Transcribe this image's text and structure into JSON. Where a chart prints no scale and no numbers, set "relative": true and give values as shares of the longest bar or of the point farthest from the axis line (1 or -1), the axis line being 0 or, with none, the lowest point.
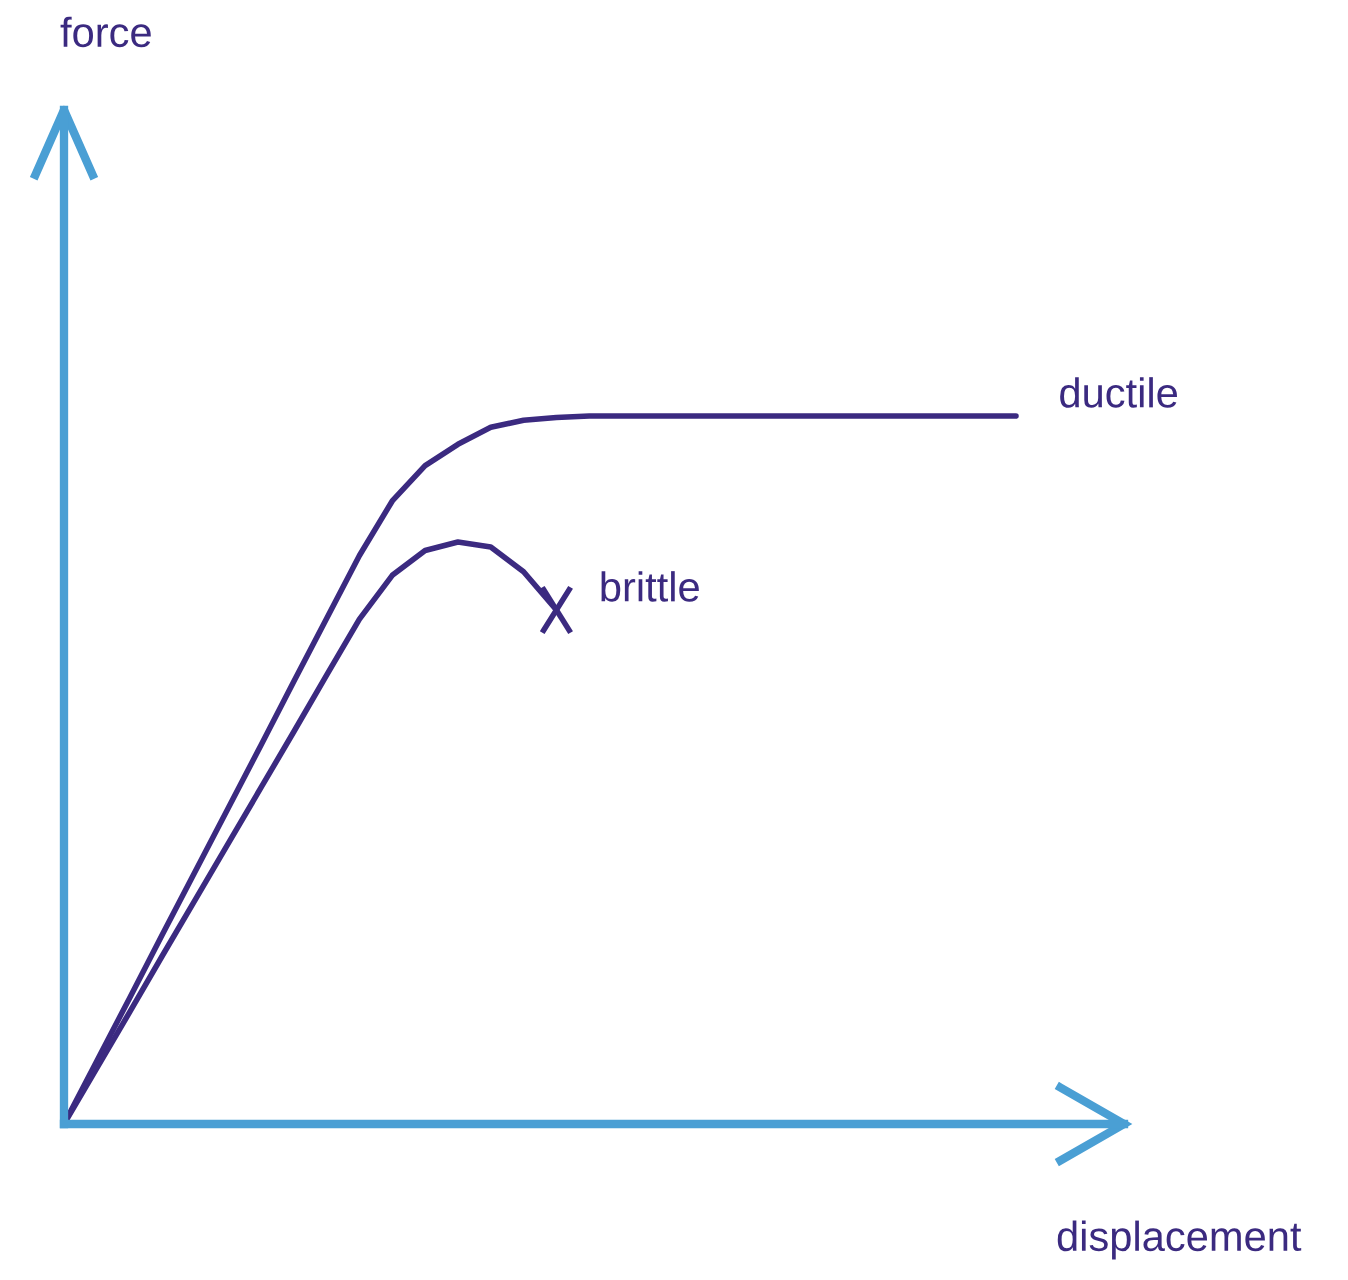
{
  "chart_data": {
    "type": "line",
    "relative": true,
    "xlabel": "displacement",
    "annotations": [
      "force"
    ],
    "line_style": "solid",
    "categories": [
      null,
      null,
      null,
      null,
      null,
      null,
      null,
      null,
      null,
      null,
      null,
      null,
      null,
      null,
      null,
      null,
      null,
      null,
      null,
      null,
      null,
      null,
      null,
      null,
      null,
      null,
      null,
      null,
      null,
      null
    ],
    "series": [
      {
        "name": "ductile",
        "color": "#3b2a80",
        "values": [
          0,
          0.089,
          0.178,
          0.268,
          0.357,
          0.446,
          0.535,
          0.625,
          0.714,
          0.803,
          0.88,
          0.93,
          0.96,
          0.984,
          0.994,
          0.998,
          1,
          1,
          1,
          1,
          1,
          1,
          1,
          1,
          1,
          1,
          1,
          1,
          1,
          1
        ]
      },
      {
        "name": "brittle",
        "color": "#3b2a80",
        "values": [
          0,
          0.079,
          0.158,
          0.238,
          0.317,
          0.396,
          0.475,
          0.554,
          0.634,
          0.713,
          0.775,
          0.81,
          0.822,
          0.815,
          0.78,
          0.726,
          null,
          null,
          null,
          null,
          null,
          null,
          null,
          null,
          null,
          null,
          null,
          null,
          null,
          null
        ]
      }
    ]
  }
}
